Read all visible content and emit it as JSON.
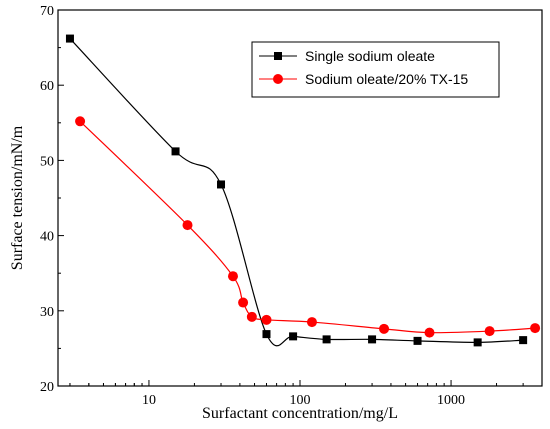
{
  "chart_data": {
    "type": "scatter",
    "title": "",
    "xlabel": "Surfactant concentration/mg/L",
    "ylabel": "Surface tension/mN/m",
    "x_scale": "log",
    "xlim": [
      2.5,
      4000
    ],
    "ylim": [
      20,
      70
    ],
    "x_tick_labels": [
      {
        "value": 10,
        "label": "10"
      },
      {
        "value": 100,
        "label": "100"
      },
      {
        "value": 1000,
        "label": "1000"
      }
    ],
    "y_tick_labels": [
      {
        "value": 20,
        "label": "20"
      },
      {
        "value": 30,
        "label": "30"
      },
      {
        "value": 40,
        "label": "40"
      },
      {
        "value": 50,
        "label": "50"
      },
      {
        "value": 60,
        "label": "60"
      },
      {
        "value": 70,
        "label": "70"
      }
    ],
    "grid": false,
    "legend_position": "top-right",
    "series": [
      {
        "name": "Single sodium oleate",
        "color": "#000000",
        "marker": "square",
        "x": [
          3,
          15,
          30,
          60,
          90,
          150,
          300,
          600,
          1500,
          3000
        ],
        "y": [
          66.2,
          51.2,
          46.8,
          26.9,
          26.6,
          26.2,
          26.2,
          26.0,
          25.8,
          26.1
        ]
      },
      {
        "name": "Sodium oleate/20% TX-15",
        "color": "#ff0000",
        "marker": "circle",
        "x": [
          3.5,
          18,
          36,
          42,
          48,
          60,
          120,
          360,
          720,
          1800,
          3600
        ],
        "y": [
          55.2,
          41.4,
          34.6,
          31.1,
          29.2,
          28.8,
          28.5,
          27.6,
          27.1,
          27.3,
          27.7
        ]
      }
    ]
  }
}
